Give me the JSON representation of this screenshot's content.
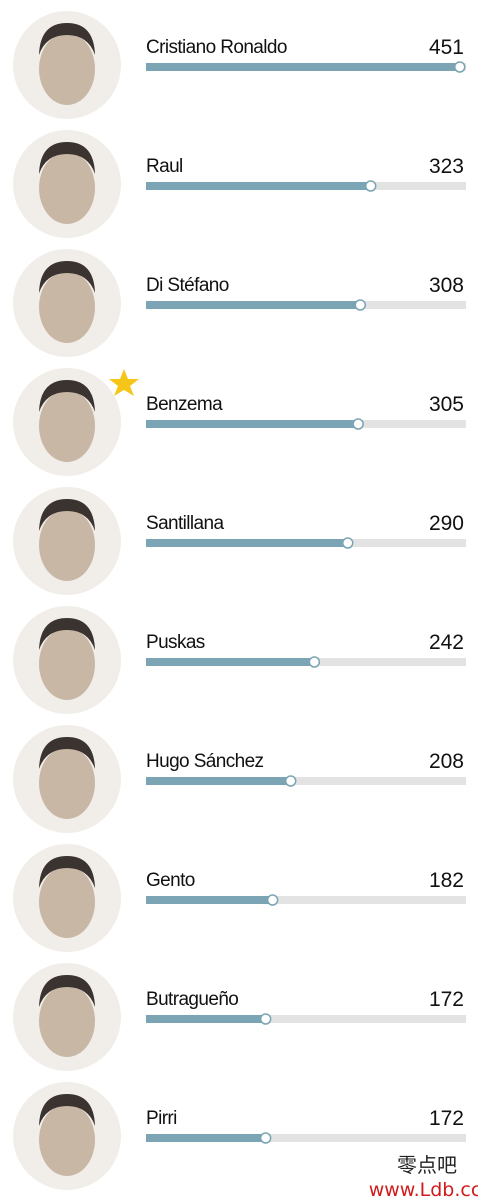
{
  "chart_data": {
    "type": "bar",
    "categories": [
      "Cristiano Ronaldo",
      "Raul",
      "Di Stéfano",
      "Benzema",
      "Santillana",
      "Puskas",
      "Hugo Sánchez",
      "Gento",
      "Butragueño",
      "Pirri"
    ],
    "values": [
      451,
      323,
      308,
      305,
      290,
      242,
      208,
      182,
      172,
      172
    ],
    "color": "#7ba5b4",
    "xlim": [
      0,
      460
    ],
    "watermark": [
      "零点吧",
      "www.Ldb.cc"
    ]
  }
}
